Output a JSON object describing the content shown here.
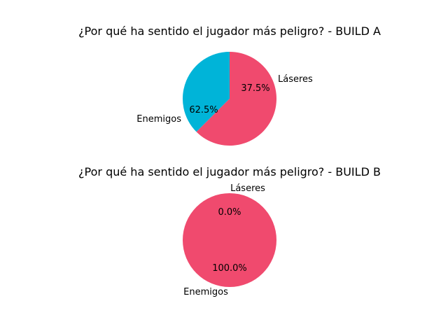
{
  "chart_data": [
    {
      "type": "pie",
      "title": "¿Por qué ha sentido el jugador más peligro? - BUILD A",
      "slices": [
        {
          "label": "Láseres",
          "value": 37.5,
          "pct_label": "37.5%",
          "color": "#00b4d8"
        },
        {
          "label": "Enemigos",
          "value": 62.5,
          "pct_label": "62.5%",
          "color": "#f04a6e"
        }
      ]
    },
    {
      "type": "pie",
      "title": "¿Por qué ha sentido el jugador más peligro? - BUILD B",
      "slices": [
        {
          "label": "Láseres",
          "value": 0.0,
          "pct_label": "0.0%",
          "color": "#00b4d8"
        },
        {
          "label": "Enemigos",
          "value": 100.0,
          "pct_label": "100.0%",
          "color": "#f04a6e"
        }
      ]
    }
  ]
}
